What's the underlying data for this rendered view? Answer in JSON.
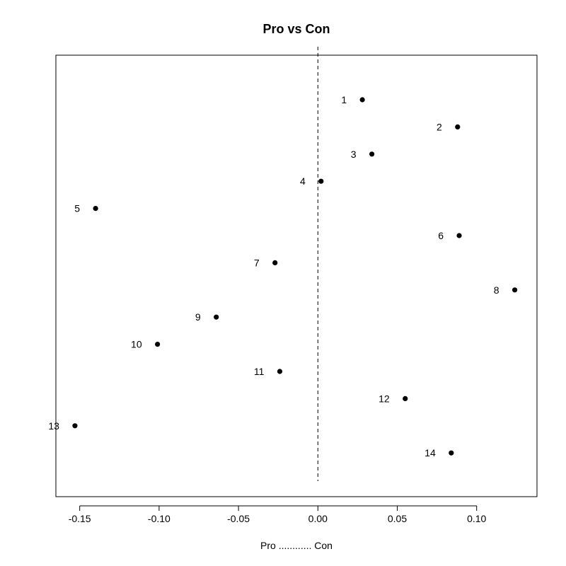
{
  "chart_data": {
    "type": "scatter",
    "title": "Pro vs Con",
    "xlabel": "Pro ............ Con",
    "ylabel": "",
    "xlim": [
      -0.165,
      0.138
    ],
    "xticks": [
      -0.15,
      -0.1,
      -0.05,
      0.0,
      0.05,
      0.1
    ],
    "xtick_labels": [
      "-0.15",
      "-0.10",
      "-0.05",
      "0.00",
      "0.05",
      "0.10"
    ],
    "reference_line": {
      "x": 0.0,
      "style": "dashed"
    },
    "grid": false,
    "legend": "none",
    "points": [
      {
        "label": "1",
        "x": 0.028
      },
      {
        "label": "2",
        "x": 0.088
      },
      {
        "label": "3",
        "x": 0.034
      },
      {
        "label": "4",
        "x": 0.002
      },
      {
        "label": "5",
        "x": -0.14
      },
      {
        "label": "6",
        "x": 0.089
      },
      {
        "label": "7",
        "x": -0.027
      },
      {
        "label": "8",
        "x": 0.124
      },
      {
        "label": "9",
        "x": -0.064
      },
      {
        "label": "10",
        "x": -0.101
      },
      {
        "label": "11",
        "x": -0.024
      },
      {
        "label": "12",
        "x": 0.055
      },
      {
        "label": "13",
        "x": -0.153
      },
      {
        "label": "14",
        "x": 0.084
      }
    ]
  }
}
